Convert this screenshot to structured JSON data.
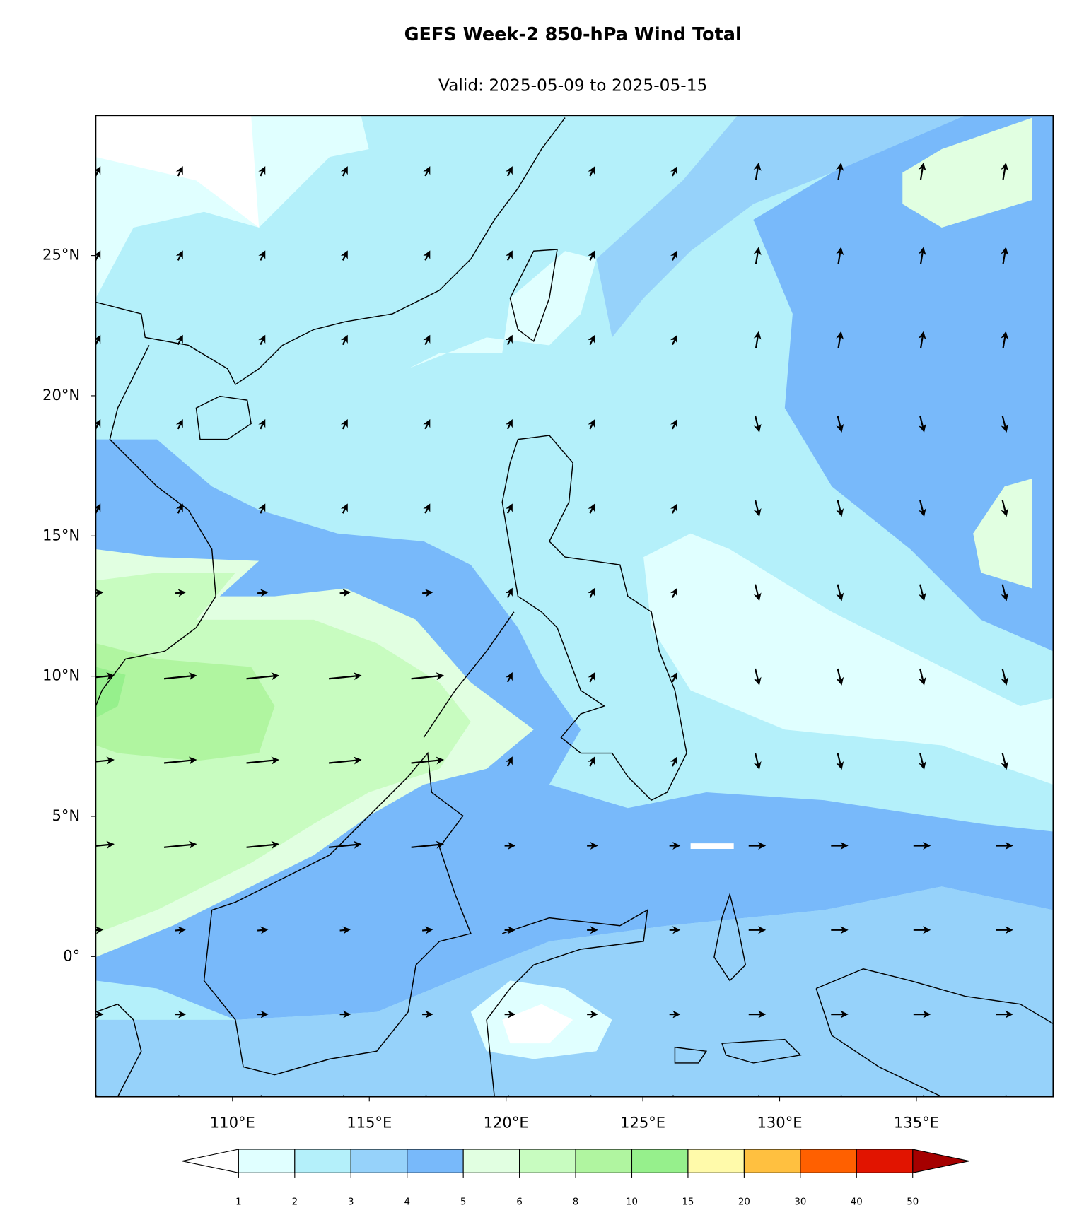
{
  "header": {
    "title": "GEFS Week-2 850-hPa Wind Total",
    "subtitle": "Valid: 2025-05-09 to 2025-05-15"
  },
  "map": {
    "xlim": [
      105,
      140
    ],
    "ylim": [
      -5,
      30
    ],
    "xticks": [
      {
        "value": 110,
        "label": "110°E"
      },
      {
        "value": 115,
        "label": "115°E"
      },
      {
        "value": 120,
        "label": "120°E"
      },
      {
        "value": 125,
        "label": "125°E"
      },
      {
        "value": 130,
        "label": "130°E"
      },
      {
        "value": 135,
        "label": "135°E"
      }
    ],
    "yticks": [
      {
        "value": 0,
        "label": "0°"
      },
      {
        "value": 5,
        "label": "5°N"
      },
      {
        "value": 10,
        "label": "10°N"
      },
      {
        "value": 15,
        "label": "15°N"
      },
      {
        "value": 20,
        "label": "20°N"
      },
      {
        "value": 25,
        "label": "25°N"
      }
    ]
  },
  "colorbar": {
    "bounds": [
      1,
      2,
      3,
      4,
      5,
      6,
      8,
      10,
      15,
      20,
      30,
      40,
      50
    ],
    "colors": [
      "#e0ffff",
      "#b4f0fa",
      "#96d2fa",
      "#78b9fa",
      "#e1ffe1",
      "#c8fcc0",
      "#b0f5a0",
      "#96f08c",
      "#fffaaa",
      "#ffc040",
      "#ff6000",
      "#e11400"
    ],
    "under_color": "#ffffff",
    "over_color": "#a50000"
  }
}
